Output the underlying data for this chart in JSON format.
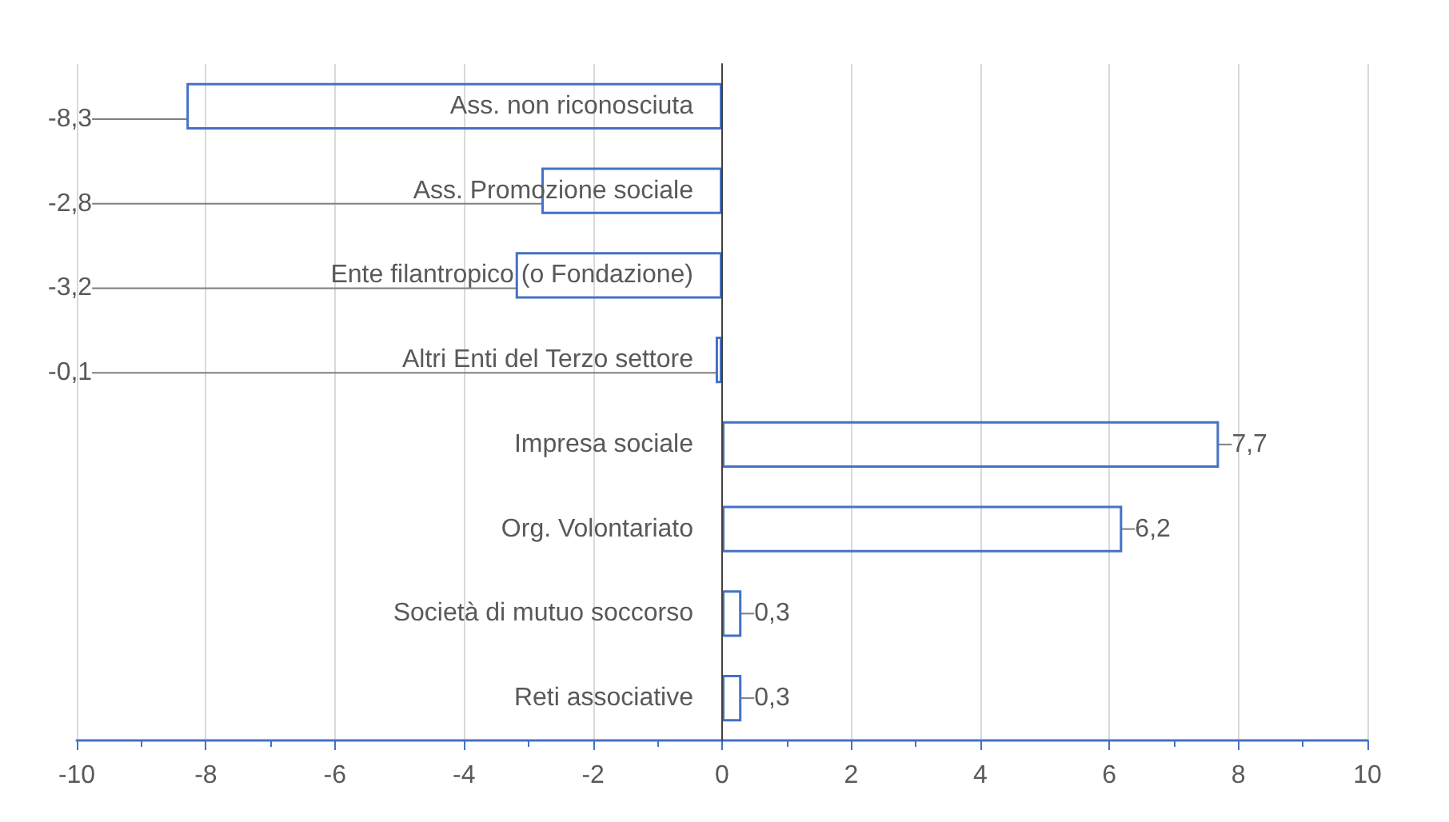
{
  "chart_data": {
    "type": "bar",
    "orientation": "horizontal",
    "categories": [
      "Ass. non riconosciuta",
      "Ass. Promozione sociale",
      "Ente filantropico (o Fondazione)",
      "Altri Enti del Terzo settore",
      "Impresa sociale",
      "Org. Volontariato",
      "Società di mutuo soccorso",
      "Reti associative"
    ],
    "values": [
      -8.3,
      -2.8,
      -3.2,
      -0.1,
      7.7,
      6.2,
      0.3,
      0.3
    ],
    "value_labels": [
      "-8,3",
      "-2,8",
      "-3,2",
      "-0,1",
      "7,7",
      "6,2",
      "0,3",
      "0,3"
    ],
    "color": "#4472c4",
    "xlim": [
      -10,
      10
    ],
    "xticks": [
      -10,
      -8,
      -6,
      -4,
      -2,
      0,
      2,
      4,
      6,
      8,
      10
    ],
    "grid": "x"
  }
}
